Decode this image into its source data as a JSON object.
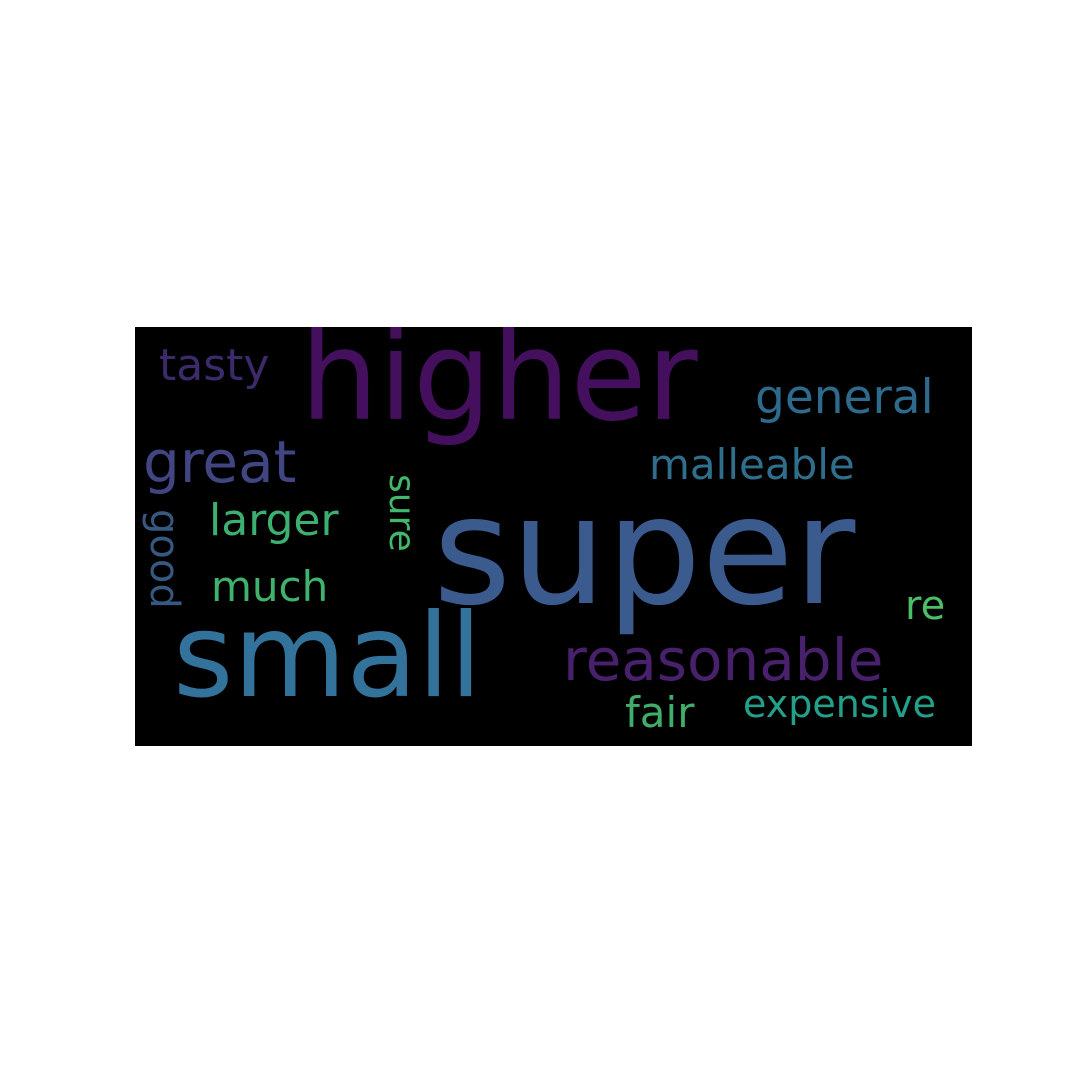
{
  "background_color": "#ffffff",
  "cloud_background_color": "#000000",
  "words": [
    {
      "id": "higher",
      "text": "higher",
      "color": "#440f5c"
    },
    {
      "id": "super",
      "text": "super",
      "color": "#3b5b8f"
    },
    {
      "id": "small",
      "text": "small",
      "color": "#33729b"
    },
    {
      "id": "great",
      "text": "great",
      "color": "#414581"
    },
    {
      "id": "tasty",
      "text": "tasty",
      "color": "#3d2a6b"
    },
    {
      "id": "general",
      "text": "general",
      "color": "#2e6a8c"
    },
    {
      "id": "malleable",
      "text": "malleable",
      "color": "#2f6f8c"
    },
    {
      "id": "larger",
      "text": "larger",
      "color": "#3cb070"
    },
    {
      "id": "good",
      "text": "good",
      "color": "#35597f"
    },
    {
      "id": "sure",
      "text": "sure",
      "color": "#42b86a"
    },
    {
      "id": "much",
      "text": "much",
      "color": "#3fb26d"
    },
    {
      "id": "re",
      "text": "re",
      "color": "#4bbf67"
    },
    {
      "id": "reasonable",
      "text": "reasonable",
      "color": "#48206b"
    },
    {
      "id": "fair",
      "text": "fair",
      "color": "#3fae6a"
    },
    {
      "id": "expensive",
      "text": "expensive",
      "color": "#23a08a"
    }
  ]
}
